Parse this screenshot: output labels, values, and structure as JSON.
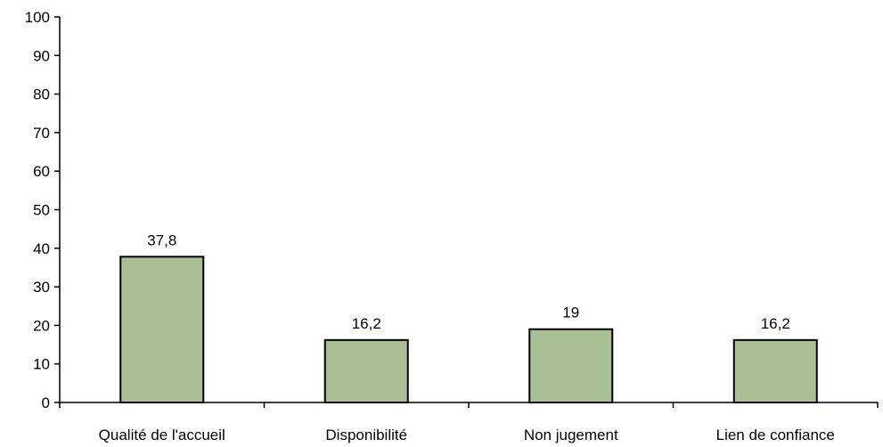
{
  "chart_data": {
    "type": "bar",
    "title": "",
    "xlabel": "",
    "ylabel": "",
    "categories": [
      "Qualité de l'accueil",
      "Disponibilité",
      "Non jugement",
      "Lien de confiance"
    ],
    "values": [
      37.8,
      16.2,
      19,
      16.2
    ],
    "data_labels": [
      "37,8",
      "16,2",
      "19",
      "16,2"
    ],
    "ylim": [
      0,
      100
    ],
    "yticks": [
      0,
      10,
      20,
      30,
      40,
      50,
      60,
      70,
      80,
      90,
      100
    ],
    "grid": false,
    "legend": "none",
    "colors": {
      "bar_fill": "#a9c095",
      "bar_stroke": "#000000",
      "axis": "#000000"
    }
  }
}
